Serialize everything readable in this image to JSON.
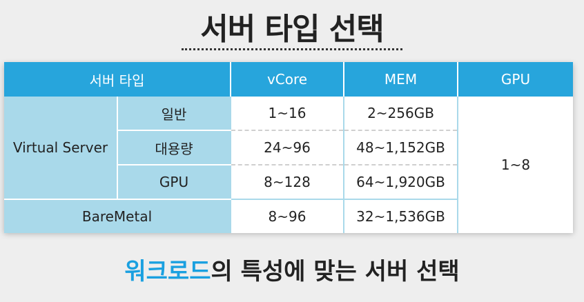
{
  "title": "서버 타입 선택",
  "table": {
    "headers": [
      "서버 타입",
      "vCore",
      "MEM",
      "GPU"
    ],
    "group_label": "Virtual Server",
    "rows": [
      {
        "sub": "일반",
        "vcore": "1~16",
        "mem": "2~256GB"
      },
      {
        "sub": "대용량",
        "vcore": "24~96",
        "mem": "48~1,152GB"
      },
      {
        "sub": "GPU",
        "vcore": "8~128",
        "mem": "64~1,920GB"
      }
    ],
    "gpu_value": "1~8",
    "baremetal": {
      "label": "BareMetal",
      "vcore": "8~96",
      "mem": "32~1,536GB"
    }
  },
  "subtitle": {
    "highlight": "워크로드",
    "rest": "의 특성에 맞는 서버 선택"
  },
  "colors": {
    "header_blue": "#27a5dc",
    "label_blue": "#a9d9ea",
    "highlight": "#1aa0e0"
  }
}
